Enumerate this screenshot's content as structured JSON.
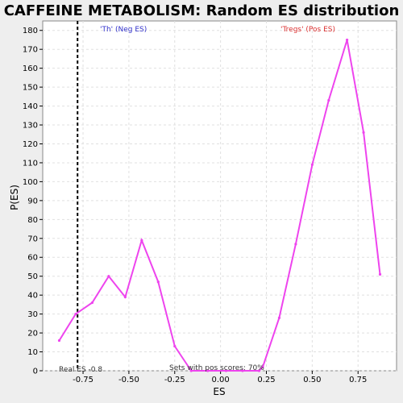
{
  "colors": {
    "background": "#eeeeee",
    "plot_bg": "#ffffff",
    "curve": "#ee44ee",
    "grid": "#e0e0e0",
    "neg_label": "#3333cc",
    "pos_label": "#dd3333",
    "real_es_line": "#000000"
  },
  "chart_data": {
    "type": "line",
    "title": "CAFFEINE METABOLISM: Random ES distribution",
    "xlabel": "ES",
    "ylabel": "P(ES)",
    "xlim": [
      -0.97,
      0.96
    ],
    "ylim": [
      0,
      185
    ],
    "x_ticks": [
      -0.75,
      -0.5,
      -0.25,
      0.0,
      0.25,
      0.5,
      0.75
    ],
    "x_tick_labels": [
      "-0.75",
      "-0.50",
      "-0.25",
      "0.00",
      "0.25",
      "0.50",
      "0.75"
    ],
    "y_ticks": [
      0,
      10,
      20,
      30,
      40,
      50,
      60,
      70,
      80,
      90,
      100,
      110,
      120,
      130,
      140,
      150,
      160,
      170,
      180
    ],
    "grid": true,
    "series": [
      {
        "x": [
          -0.88,
          -0.79,
          -0.7,
          -0.61,
          -0.52,
          -0.43,
          -0.34,
          -0.25,
          -0.16,
          -0.07,
          0.03,
          0.12,
          0.21,
          0.23,
          0.32,
          0.41,
          0.5,
          0.59,
          0.69,
          0.78,
          0.87
        ],
        "values": [
          16,
          30,
          36,
          50,
          39,
          69,
          47,
          13,
          0,
          0,
          0,
          0,
          0,
          2,
          28,
          67,
          109,
          143,
          175,
          126,
          51
        ]
      }
    ],
    "real_es": -0.78,
    "annotations": {
      "neg_label": "'Th' (Neg ES)",
      "pos_label": "'Tregs' (Pos ES)",
      "real_es_text": "Real ES -0.8",
      "pos_scores_text": "Sets with pos scores: 70%"
    }
  }
}
